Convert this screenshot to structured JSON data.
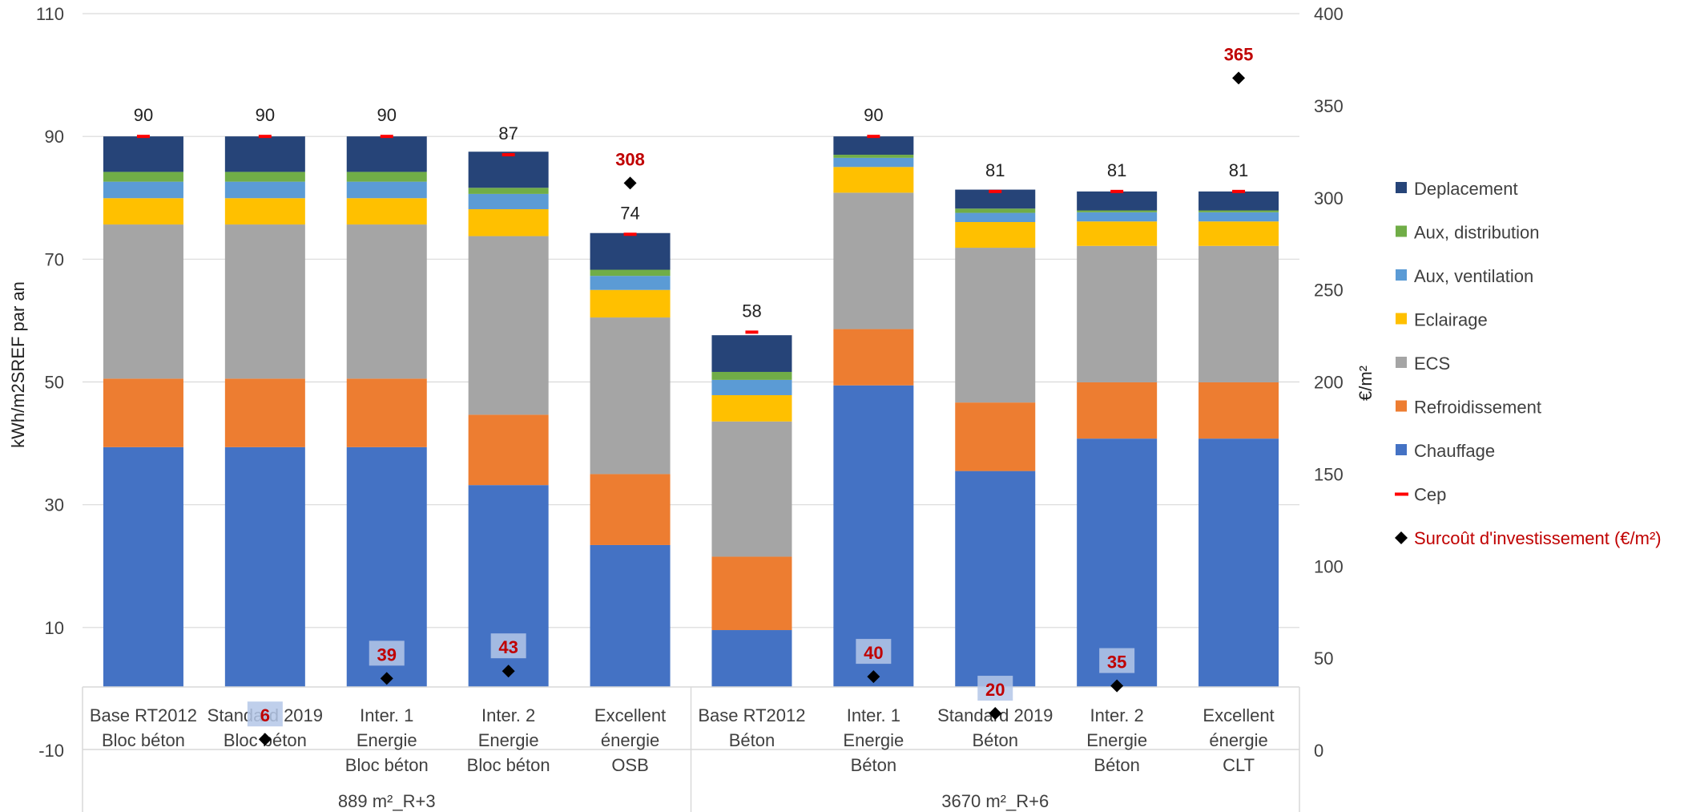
{
  "chart_data": {
    "type": "bar",
    "stacked": true,
    "title": "",
    "ylabel": "kWh/m2SREF par an",
    "y2label": "€/m²",
    "ylim": [
      -10,
      110
    ],
    "yticks": [
      -10,
      10,
      30,
      50,
      70,
      90,
      110
    ],
    "y2lim": [
      0,
      400
    ],
    "y2ticks": [
      0,
      50,
      100,
      150,
      200,
      250,
      300,
      350,
      400
    ],
    "grid": true,
    "legend_position": "right",
    "categories": [
      [
        "Base RT2012",
        "Bloc béton"
      ],
      [
        "Standard 2019",
        "Bloc béton"
      ],
      [
        "Inter. 1",
        "Energie",
        "Bloc béton"
      ],
      [
        "Inter. 2",
        "Energie",
        "Bloc béton"
      ],
      [
        "Excellent",
        "énergie",
        "OSB"
      ],
      [
        "Base RT2012",
        "Béton"
      ],
      [
        "Inter. 1",
        "Energie",
        "Béton"
      ],
      [
        "Standard 2019",
        "Béton"
      ],
      [
        "Inter. 2",
        "Energie",
        "Béton"
      ],
      [
        "Excellent",
        "énergie",
        "CLT"
      ]
    ],
    "groups": [
      {
        "label": "889 m²_R+3",
        "count": 5
      },
      {
        "label": "3670 m²_R+6",
        "count": 5
      }
    ],
    "series": [
      {
        "name": "Chauffage",
        "color": "#4472c4",
        "values": [
          39.2,
          39.2,
          39.2,
          33.0,
          23.2,
          9.3,
          49.3,
          35.3,
          40.6,
          40.6
        ]
      },
      {
        "name": "Refroidissement",
        "color": "#ed7d31",
        "values": [
          11.2,
          11.2,
          11.2,
          11.5,
          11.6,
          12.0,
          9.2,
          11.2,
          9.2,
          9.2
        ]
      },
      {
        "name": "ECS",
        "color": "#a5a5a5",
        "values": [
          25.2,
          25.2,
          25.2,
          29.2,
          25.6,
          22.1,
          22.3,
          25.3,
          22.3,
          22.3
        ]
      },
      {
        "name": "Eclairage",
        "color": "#ffc000",
        "values": [
          4.3,
          4.3,
          4.3,
          4.4,
          4.5,
          4.3,
          4.2,
          4.2,
          4.0,
          4.0
        ]
      },
      {
        "name": "Aux, ventilation",
        "color": "#5b9bd5",
        "values": [
          2.7,
          2.7,
          2.7,
          2.5,
          2.3,
          2.5,
          1.5,
          1.5,
          1.5,
          1.5
        ]
      },
      {
        "name": "Aux, distribution",
        "color": "#70ad47",
        "values": [
          1.6,
          1.6,
          1.6,
          1.0,
          1.0,
          1.3,
          0.5,
          0.7,
          0.3,
          0.3
        ]
      },
      {
        "name": "Deplacement",
        "color": "#264478",
        "values": [
          5.8,
          5.8,
          5.8,
          5.9,
          6.0,
          6.0,
          3.0,
          3.1,
          3.1,
          3.1
        ]
      }
    ],
    "cep": {
      "name": "Cep",
      "color": "#ff0000",
      "values": [
        90,
        90,
        90,
        87,
        74,
        58,
        90,
        81,
        81,
        81
      ]
    },
    "cep_labels": [
      "90",
      "90",
      "90",
      "87",
      "74",
      "58",
      "90",
      "81",
      "81",
      "81"
    ],
    "surcout": {
      "name": "Surcoût d'investissement (€/m²)",
      "color": "#000000",
      "label_color": "#c00000",
      "values": [
        null,
        6,
        39,
        43,
        308,
        null,
        40,
        20,
        35,
        365
      ]
    },
    "surcout_labels": [
      "",
      "6",
      "39",
      "43",
      "308",
      "",
      "40",
      "20",
      "35",
      "365"
    ],
    "legend": [
      {
        "name": "Deplacement",
        "color": "#264478",
        "marker": "square"
      },
      {
        "name": "Aux, distribution",
        "color": "#70ad47",
        "marker": "square"
      },
      {
        "name": "Aux, ventilation",
        "color": "#5b9bd5",
        "marker": "square"
      },
      {
        "name": "Eclairage",
        "color": "#ffc000",
        "marker": "square"
      },
      {
        "name": "ECS",
        "color": "#a5a5a5",
        "marker": "square"
      },
      {
        "name": "Refroidissement",
        "color": "#ed7d31",
        "marker": "square"
      },
      {
        "name": "Chauffage",
        "color": "#4472c4",
        "marker": "square"
      },
      {
        "name": "Cep",
        "color": "#ff0000",
        "marker": "dash"
      },
      {
        "name": "Surcoût d'investissement (€/m²)",
        "color": "#000000",
        "text_color": "#c00000",
        "marker": "diamond"
      }
    ]
  }
}
